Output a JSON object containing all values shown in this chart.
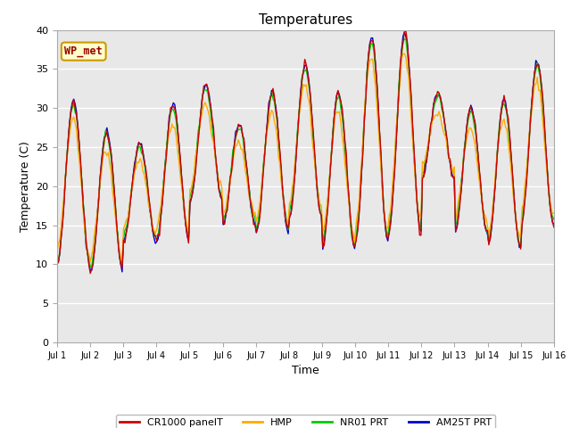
{
  "title": "Temperatures",
  "xlabel": "Time",
  "ylabel": "Temperature (C)",
  "ylim": [
    0,
    40
  ],
  "yticks": [
    0,
    5,
    10,
    15,
    20,
    25,
    30,
    35,
    40
  ],
  "xlim_start": 0,
  "xlim_end": 15,
  "xtick_labels": [
    "Jul 1",
    "Jul 2",
    "Jul 3",
    "Jul 4",
    "Jul 5",
    "Jul 6",
    "Jul 7",
    "Jul 8",
    "Jul 9",
    "Jul 10",
    "Jul 11",
    "Jul 12",
    "Jul 13",
    "Jul 14",
    "Jul 15",
    "Jul 16"
  ],
  "annotation_text": "WP_met",
  "annotation_bg": "#ffffcc",
  "annotation_border": "#cc9900",
  "annotation_text_color": "#990000",
  "colors": {
    "CR1000_panelT": "#cc0000",
    "HMP": "#ffaa00",
    "NR01_PRT": "#00cc00",
    "AM25T_PRT": "#0000cc"
  },
  "legend_labels": [
    "CR1000 panelT",
    "HMP",
    "NR01 PRT",
    "AM25T PRT"
  ],
  "fig_bg": "#ffffff",
  "plot_bg": "#e8e8e8",
  "title_fontsize": 11,
  "axis_label_fontsize": 9,
  "tick_fontsize": 8,
  "diurnal_peaks": [
    31,
    27,
    25.5,
    30.5,
    33,
    28,
    32,
    35.5,
    32,
    39,
    39.5,
    32,
    30,
    31,
    36
  ],
  "diurnal_mins": [
    10,
    9,
    13,
    13,
    18,
    15,
    14,
    16,
    12,
    13,
    14,
    21,
    14,
    12,
    15
  ]
}
